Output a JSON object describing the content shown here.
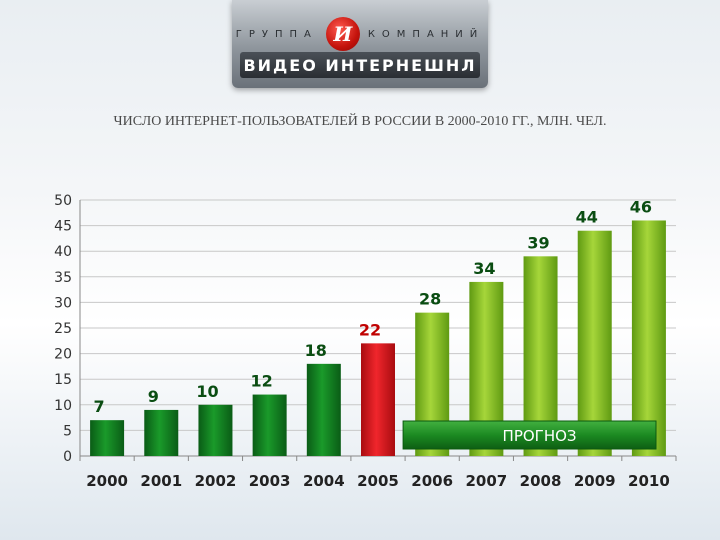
{
  "header": {
    "logo_top_left": "ГРУППА",
    "logo_top_right": "КОМПАНИЙ",
    "logo_mark": "И",
    "logo_bottom": "ВИДЕО ИНТЕРНЕШНЛ"
  },
  "title": "ЧИСЛО ИНТЕРНЕТ-ПОЛЬЗОВАТЕЛЕЙ В РОССИИ В 2000-2010 ГГ., МЛН. ЧЕЛ.",
  "chart_data": {
    "type": "bar",
    "title": "ЧИСЛО ИНТЕРНЕТ-ПОЛЬЗОВАТЕЛЕЙ В РОССИИ В 2000-2010 ГГ., МЛН. ЧЕЛ.",
    "categories": [
      "2000",
      "2001",
      "2002",
      "2003",
      "2004",
      "2005",
      "2006",
      "2007",
      "2008",
      "2009",
      "2010"
    ],
    "values": [
      7,
      9,
      10,
      12,
      18,
      22,
      28,
      34,
      39,
      44,
      46
    ],
    "ylim": [
      0,
      50
    ],
    "yticks": [
      0,
      5,
      10,
      15,
      20,
      25,
      30,
      35,
      40,
      45,
      50
    ],
    "grid": true,
    "forecast_label": "ПРОГНОЗ",
    "forecast_from": "2006",
    "colors": {
      "actual": "#0f7a1e",
      "highlight": "#d8141a",
      "forecast": "#8cc21e",
      "label_dark": "#0a4d12",
      "label_red": "#c00000",
      "forecast_banner": "#1c8a22"
    },
    "highlight_category": "2005"
  }
}
